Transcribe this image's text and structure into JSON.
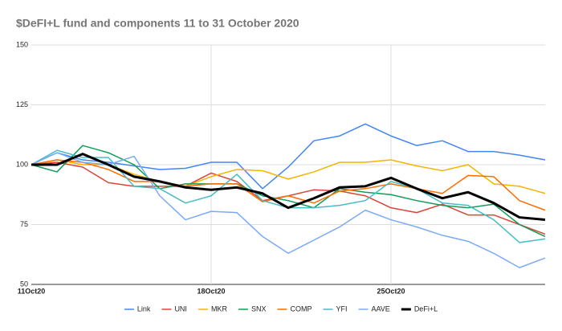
{
  "chart_data": {
    "type": "line",
    "title": "$DeFI+L fund and components 11 to 31 October 2020",
    "categories": [
      "11Oct20",
      null,
      null,
      null,
      null,
      null,
      null,
      "18Oct20",
      null,
      null,
      null,
      null,
      null,
      null,
      "25Oct20",
      null,
      null,
      null,
      null,
      null,
      null
    ],
    "ylim": [
      50,
      150
    ],
    "yticks": [
      50,
      75,
      100,
      125,
      150
    ],
    "grid": true,
    "legend": "bottom",
    "series": [
      {
        "name": "Link",
        "color": "#4285f4",
        "line_width": 1.5,
        "values": [
          100,
          105,
          102,
          101,
          99.5,
          98,
          98.5,
          101,
          101,
          90,
          99,
          110,
          112,
          117,
          112,
          108,
          110,
          105.5,
          105.5,
          104,
          102
        ]
      },
      {
        "name": "UNI",
        "color": "#db4437",
        "line_width": 1.5,
        "values": [
          100,
          101,
          99,
          92.5,
          91,
          91,
          91,
          96.5,
          93,
          85,
          87,
          89.5,
          89,
          87,
          82,
          80,
          83.5,
          79,
          79,
          75,
          71
        ]
      },
      {
        "name": "MKR",
        "color": "#f4b400",
        "line_width": 1.5,
        "values": [
          100,
          102,
          100,
          100,
          96,
          93,
          91,
          95,
          98,
          97.5,
          94,
          97,
          101,
          101,
          102,
          99.5,
          97.5,
          100,
          92,
          91,
          88
        ]
      },
      {
        "name": "SNX",
        "color": "#0f9d58",
        "line_width": 1.5,
        "values": [
          100,
          97,
          108,
          105,
          100,
          90,
          92,
          92,
          92,
          87,
          85,
          82,
          90,
          88.5,
          87.5,
          85,
          83,
          82,
          83.5,
          75,
          70
        ]
      },
      {
        "name": "COMP",
        "color": "#ff6d01",
        "line_width": 1.5,
        "values": [
          100,
          102,
          101,
          98,
          93,
          93,
          91,
          92,
          92,
          84.5,
          87,
          84,
          89,
          90,
          92,
          90,
          88,
          95.5,
          95,
          85,
          81
        ]
      },
      {
        "name": "YFI",
        "color": "#46bdc6",
        "line_width": 1.5,
        "values": [
          100,
          106,
          103,
          103,
          91,
          90,
          84,
          87,
          96,
          85,
          82,
          82,
          83,
          85,
          93,
          90,
          84,
          83,
          77,
          67.5,
          69
        ]
      },
      {
        "name": "AAVE",
        "color": "#7baaf7",
        "line_width": 1.5,
        "values": [
          100,
          105,
          101,
          100,
          103.5,
          87,
          77,
          80.5,
          80,
          70,
          63,
          68.5,
          74,
          81,
          77,
          74,
          70.5,
          68,
          63,
          57,
          61
        ]
      },
      {
        "name": "DeFi+L",
        "color": "#000000",
        "line_width": 3,
        "values": [
          100,
          100,
          104.5,
          100,
          95,
          93,
          90.5,
          89.5,
          90.5,
          88,
          82,
          86,
          90.5,
          91,
          94.5,
          90,
          86,
          88.5,
          84,
          78,
          77
        ]
      }
    ]
  }
}
